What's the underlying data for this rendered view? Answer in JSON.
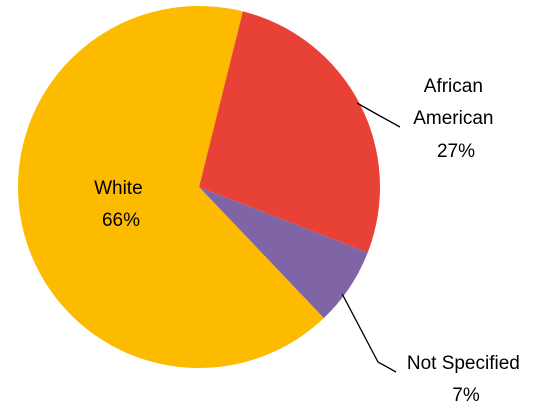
{
  "chart_data": {
    "type": "pie",
    "title": "",
    "start_angle_deg": 14,
    "direction": "clockwise",
    "label_position": {
      "White": "inside",
      "African American": "outside",
      "Not Specified": "outside"
    },
    "slices": [
      {
        "label": "African American",
        "label_lines": [
          "African",
          "American"
        ],
        "value": 27,
        "value_label": "27%",
        "color": "#E84236"
      },
      {
        "label": "Not Specified",
        "label_lines": [
          "Not Specified"
        ],
        "value": 7,
        "value_label": "7%",
        "color": "#7F64A6"
      },
      {
        "label": "White",
        "label_lines": [
          "White"
        ],
        "value": 66,
        "value_label": "66%",
        "color": "#FDBB00"
      }
    ]
  }
}
